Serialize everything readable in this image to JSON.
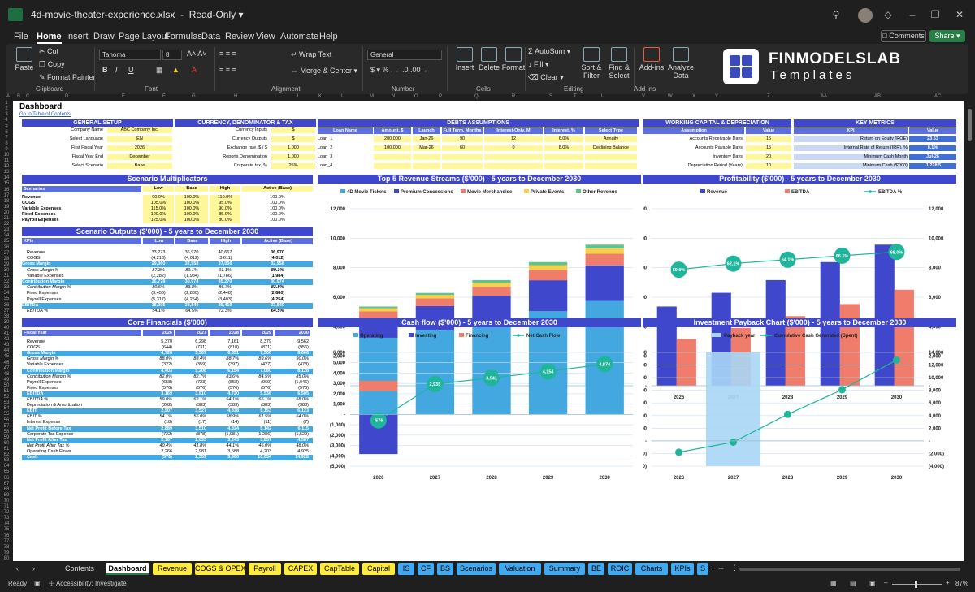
{
  "window": {
    "title": "4d-movie-theater-experience.xlsx",
    "mode": "Read-Only"
  },
  "menu": [
    "File",
    "Home",
    "Insert",
    "Draw",
    "Page Layout",
    "Formulas",
    "Data",
    "Review",
    "View",
    "Automate",
    "Help"
  ],
  "menu_active": "Home",
  "buttons": {
    "comments": "Comments",
    "share": "Share"
  },
  "ribbon": {
    "clipboard": {
      "paste": "Paste",
      "cut": "Cut",
      "copy": "Copy",
      "painter": "Format Painter",
      "label": "Clipboard"
    },
    "font": {
      "name": "Tahoma",
      "size": "8",
      "label": "Font"
    },
    "alignment": {
      "wrap": "Wrap Text",
      "merge": "Merge & Center",
      "label": "Alignment"
    },
    "number": {
      "format": "General",
      "label": "Number"
    },
    "cells": {
      "insert": "Insert",
      "delete": "Delete",
      "format": "Format",
      "label": "Cells"
    },
    "editing": {
      "autosum": "AutoSum",
      "fill": "Fill",
      "clear": "Clear",
      "sort": "Sort & Filter",
      "find": "Find & Select",
      "label": "Editing"
    },
    "addins": {
      "addins": "Add-ins",
      "analyze": "Analyze Data",
      "label": "Add-ins"
    },
    "brand": {
      "line1": "FINMODELSLAB",
      "line2": "Templates"
    }
  },
  "columns": [
    "A",
    "B",
    "C",
    "D",
    "E",
    "F",
    "G",
    "H",
    "I",
    "J",
    "K",
    "L",
    "M",
    "N",
    "O",
    "P",
    "Q",
    "R",
    "S",
    "T",
    "U",
    "V",
    "W",
    "X",
    "Y",
    "Z",
    "AA",
    "AB",
    "AC"
  ],
  "sheet": {
    "title": "Dashboard",
    "link": "Go to Table of Contents",
    "general": {
      "header": "GENERAL SETUP",
      "rows": [
        [
          "Company Name",
          "ABC Company Inc."
        ],
        [
          "Select Language",
          "EN"
        ],
        [
          "First Fiscal Year",
          "2026"
        ],
        [
          "Fiscal Year End",
          "December"
        ],
        [
          "Select Scenario",
          "Base"
        ]
      ]
    },
    "currency": {
      "header": "CURRENCY, DENOMINATOR & TAX",
      "rows": [
        [
          "Currency Inputs",
          "$"
        ],
        [
          "Currency Outputs",
          "$"
        ],
        [
          "Exchange rate, $ / $",
          "1.000"
        ],
        [
          "Reports Denomination",
          "1,000"
        ],
        [
          "Corporate tax, %",
          "25%"
        ]
      ]
    },
    "debts": {
      "header": "DEBTS ASSUMPTIONS",
      "cols": [
        "Loan Name",
        "Amount, $",
        "Launch",
        "Full Term, Months",
        "Interest-Only, M",
        "Interest, %",
        "Select Type"
      ],
      "rows": [
        [
          "Loan_1",
          "200,000",
          "Jan-26",
          "90",
          "12",
          "6.0%",
          "Annuity"
        ],
        [
          "Loan_2",
          "100,000",
          "Mar-26",
          "60",
          "0",
          "8.0%",
          "Declining Balance"
        ],
        [
          "Loan_3",
          "",
          "",
          "",
          "",
          "",
          ""
        ],
        [
          "Loan_4",
          "",
          "",
          "",
          "",
          "",
          ""
        ]
      ]
    },
    "wc": {
      "header": "WORKING CAPITAL & DEPRECIATION",
      "cols": [
        "Assumption",
        "Value"
      ],
      "rows": [
        [
          "Accounts Receivable Days",
          "15"
        ],
        [
          "Accounts Payable Days",
          "15"
        ],
        [
          "Inventory Days",
          "20"
        ],
        [
          "Depreciation Period (Years)",
          "10"
        ]
      ]
    },
    "kpi": {
      "header": "KEY METRICS",
      "cols": [
        "KPI",
        "Value"
      ],
      "rows": [
        [
          "Return on Equity (ROE)",
          "23.53"
        ],
        [
          "Internal Rate of Return (IRR), %",
          "8.1%"
        ],
        [
          "Minimum Cash Month",
          "Jul-26"
        ],
        [
          "Minimum Cash ($'000)",
          "-1,228.5"
        ]
      ]
    },
    "multipliers": {
      "title": "Scenario Multiplicators",
      "cols": [
        "Scenarios",
        "Low",
        "Base",
        "High",
        "Active (Base)"
      ],
      "rows": [
        [
          "Revenue",
          "90.0%",
          "100.0%",
          "110.0%",
          "100.0%"
        ],
        [
          "COGS",
          "105.0%",
          "100.0%",
          "95.0%",
          "100.0%"
        ],
        [
          "Variable Expenses",
          "115.0%",
          "100.0%",
          "90.0%",
          "100.0%"
        ],
        [
          "Fixed Expenses",
          "120.0%",
          "100.0%",
          "85.0%",
          "100.0%"
        ],
        [
          "Payroll Expenses",
          "125.0%",
          "100.0%",
          "80.0%",
          "100.0%"
        ]
      ]
    },
    "outputs": {
      "title": "Scenario Outputs ($'000) - 5 years to December 2030",
      "cols": [
        "KPIs",
        "Low",
        "Base",
        "High",
        "Active (Base)"
      ],
      "rows": [
        [
          "Revenue",
          "33,273",
          "36,970",
          "40,667",
          "36,970",
          ""
        ],
        [
          "COGS",
          "(4,213)",
          "(4,012)",
          "(3,611)",
          "(4,012)",
          ""
        ],
        [
          "Gross Margin",
          "29,060",
          "32,958",
          "37,056",
          "32,958",
          "hl"
        ],
        [
          "Gross Margin %",
          "87.3%",
          "89.1%",
          "91.1%",
          "89.1%",
          "it"
        ],
        [
          "Variable Expenses",
          "(2,282)",
          "(1,984)",
          "(1,786)",
          "(1,984)",
          ""
        ],
        [
          "Contribution Margin",
          "26,778",
          "30,974",
          "35,270",
          "30,974",
          "hl"
        ],
        [
          "Contribution Margin %",
          "80.5%",
          "83.8%",
          "86.7%",
          "83.8%",
          "it"
        ],
        [
          "Fixed Expenses",
          "(3,456)",
          "(2,880)",
          "(2,448)",
          "(2,880)",
          ""
        ],
        [
          "Payroll Expenses",
          "(5,317)",
          "(4,254)",
          "(3,403)",
          "(4,254)",
          ""
        ],
        [
          "EBITDA",
          "18,005",
          "23,840",
          "29,419",
          "23,840",
          "hl"
        ],
        [
          "EBITDA %",
          "54.1%",
          "64.5%",
          "72.3%",
          "64.5%",
          "it"
        ]
      ]
    },
    "core": {
      "title": "Core Financials ($'000)",
      "cols": [
        "Fiscal Year",
        "2026",
        "2027",
        "2028",
        "2029",
        "2030"
      ],
      "rows": [
        [
          "Revenue",
          "5,370",
          "6,298",
          "7,161",
          "8,379",
          "9,562",
          ""
        ],
        [
          "COGS",
          "(644)",
          "(731)",
          "(810)",
          "(871)",
          "(956)",
          ""
        ],
        [
          "Gross Margin",
          "4,726",
          "5,567",
          "6,351",
          "7,508",
          "8,606",
          "hl"
        ],
        [
          "Gross Margin %",
          "88.0%",
          "88.4%",
          "88.7%",
          "89.6%",
          "90.0%",
          "it"
        ],
        [
          "Variable Expenses",
          "(322)",
          "(359)",
          "(397)",
          "(427)",
          "(478)",
          ""
        ],
        [
          "Contribution Margin",
          "4,403",
          "5,208",
          "6,154",
          "7,080",
          "8,128",
          "hl"
        ],
        [
          "Contribution Margin %",
          "82.0%",
          "82.7%",
          "83.6%",
          "84.5%",
          "85.0%",
          "it"
        ],
        [
          "Payroll Expenses",
          "(658)",
          "(723)",
          "(858)",
          "(969)",
          "(1,046)",
          ""
        ],
        [
          "Fixed Expenses",
          "(576)",
          "(576)",
          "(576)",
          "(576)",
          "(576)",
          ""
        ],
        [
          "EBITDA",
          "3,169",
          "3,910",
          "4,720",
          "5,536",
          "6,505",
          "hl"
        ],
        [
          "EBITDA %",
          "59.0%",
          "62.1%",
          "64.1%",
          "66.1%",
          "68.0%",
          "it"
        ],
        [
          "Depreciation & Amortization",
          "(262)",
          "(383)",
          "(383)",
          "(383)",
          "(383)",
          ""
        ],
        [
          "EBIT",
          "2,907",
          "3,527",
          "4,338",
          "5,153",
          "6,123",
          "hl"
        ],
        [
          "EBIT %",
          "54.1%",
          "56.0%",
          "58.9%",
          "61.5%",
          "64.0%",
          "it"
        ],
        [
          "Interest Expense",
          "(18)",
          "(17)",
          "(14)",
          "(11)",
          "(7)",
          ""
        ],
        [
          "Net Profit Before Tax",
          "2,889",
          "3,510",
          "4,324",
          "5,142",
          "6,115",
          "hl"
        ],
        [
          "Corporate Tax Expense",
          "(722)",
          "(878)",
          "(1,081)",
          "(1,286)",
          "(1,529)",
          ""
        ],
        [
          "Net Profit After Tax",
          "2,167",
          "2,633",
          "3,243",
          "3,857",
          "4,587",
          "hl"
        ],
        [
          "Net Profit After Tax %",
          "40.4%",
          "41.8%",
          "44.1%",
          "46.0%",
          "48.0%",
          "it"
        ],
        [
          "Operating Cash Flows",
          "2,266",
          "2,981",
          "3,588",
          "4,203",
          "4,925",
          ""
        ],
        [
          "Cash",
          "(576)",
          "2,359",
          "5,900",
          "10,054",
          "14,928",
          "hl"
        ]
      ]
    },
    "row_numbers": [
      "1",
      "2",
      "3",
      "4",
      "5",
      "6",
      "7",
      "8",
      "9",
      "10",
      "11",
      "12",
      "13",
      "14",
      "15",
      "16",
      "17",
      "18",
      "19",
      "20",
      "21",
      "22",
      "23",
      "24",
      "25",
      "26",
      "27",
      "28",
      "29",
      "30",
      "31",
      "32",
      "33",
      "34",
      "35",
      "36",
      "37",
      "38",
      "39",
      "40",
      "41",
      "42",
      "43",
      "44",
      "45",
      "46",
      "47",
      "48",
      "49",
      "50",
      "51",
      "52",
      "53",
      "54",
      "55",
      "56",
      "57",
      "58",
      "59",
      "60",
      "61",
      "62",
      "63",
      "64",
      "65",
      "66",
      "67",
      "68",
      "69",
      "70",
      "71",
      "72",
      "73",
      "74",
      "75",
      "76",
      "77",
      "78",
      "79",
      "80"
    ]
  },
  "chart_data": [
    {
      "type": "bar",
      "title": "Top 5 Revenue Streams ($'000) - 5 years to December 2030",
      "stacked": true,
      "categories": [
        "2026",
        "2027",
        "2028",
        "2029",
        "2030"
      ],
      "ylim": [
        0,
        12000
      ],
      "yticks": [
        "-",
        "2,000",
        "4,000",
        "6,000",
        "8,000",
        "10,000",
        "12,000"
      ],
      "legend": "top",
      "series": [
        {
          "name": "4D Movie Tickets",
          "color": "#43a8e0",
          "values": [
            3250,
            3800,
            4300,
            5050,
            5750
          ]
        },
        {
          "name": "Premium Concessions",
          "color": "#3f48cc",
          "values": [
            1350,
            1600,
            1800,
            2100,
            2400
          ]
        },
        {
          "name": "Movie Merchandise",
          "color": "#f07c6c",
          "values": [
            450,
            520,
            600,
            700,
            800
          ]
        },
        {
          "name": "Private Events",
          "color": "#f7d04a",
          "values": [
            200,
            230,
            270,
            310,
            350
          ]
        },
        {
          "name": "Other Revenue",
          "color": "#5fc38a",
          "values": [
            120,
            140,
            190,
            220,
            260
          ]
        }
      ]
    },
    {
      "type": "bar+line",
      "title": "Profitability ($'000) - 5 years to December 2030",
      "categories": [
        "2026",
        "2027",
        "2028",
        "2029",
        "2030"
      ],
      "ylim": [
        0,
        12000
      ],
      "yticks": [
        "-",
        "2,000",
        "4,000",
        "6,000",
        "8,000",
        "10,000",
        "12,000"
      ],
      "y2lim": [
        0,
        0.9
      ],
      "legend": "top",
      "series": [
        {
          "name": "Revenue",
          "color": "#3f48cc",
          "values": [
            5370,
            6298,
            7161,
            8379,
            9562
          ]
        },
        {
          "name": "EBITDA",
          "color": "#f07c6c",
          "values": [
            3169,
            3910,
            4720,
            5536,
            6505
          ]
        },
        {
          "name": "EBITDA %",
          "color": "#1fb59a",
          "type": "line",
          "values": [
            0.59,
            0.621,
            0.641,
            0.661,
            0.68
          ],
          "labels": [
            "59.0%",
            "62.1%",
            "64.1%",
            "66.1%",
            "68.0%"
          ]
        }
      ]
    },
    {
      "type": "bar+line",
      "title": "Cash flow ($'000) - 5 years to December 2030",
      "stacked": true,
      "categories": [
        "2026",
        "2027",
        "2028",
        "2029",
        "2030"
      ],
      "ylim": [
        -5000,
        6000
      ],
      "yticks": [
        "(5,000)",
        "(4,000)",
        "(3,000)",
        "(2,000)",
        "(1,000)",
        "-",
        "1,000",
        "2,000",
        "3,000",
        "4,000",
        "5,000",
        "6,000"
      ],
      "legend": "top",
      "series": [
        {
          "name": "Operating",
          "color": "#43a8e0",
          "values": [
            2266,
            2981,
            3588,
            4203,
            4925
          ]
        },
        {
          "name": "Investing",
          "color": "#3f48cc",
          "values": [
            -3830,
            0,
            0,
            0,
            0
          ]
        },
        {
          "name": "Financing",
          "color": "#f07c6c",
          "values": [
            988,
            0,
            0,
            0,
            0
          ]
        },
        {
          "name": "Net Cash Flow",
          "color": "#1fb59a",
          "type": "line",
          "values": [
            -576,
            2935,
            3541,
            4154,
            4874
          ],
          "labels": [
            "-576",
            "2,935",
            "3,541",
            "4,154",
            "4,874"
          ]
        }
      ]
    },
    {
      "type": "bar+line",
      "title": "Investment Payback Chart ($'000) - 5 years to December 2030",
      "categories": [
        "2026",
        "2027",
        "2028",
        "2029",
        "2030"
      ],
      "ylim": [
        -4000,
        14000
      ],
      "yticks": [
        "(4,000)",
        "(2,000)",
        "-",
        "2,000",
        "4,000",
        "6,000",
        "8,000",
        "10,000",
        "12,000",
        "14,000"
      ],
      "legend": "top",
      "series": [
        {
          "name": "Payback year",
          "color": "#a9d6f5",
          "values": [
            0,
            1,
            0,
            0,
            0
          ]
        },
        {
          "name": "Cumulative Cash Generated (Spent)",
          "color": "#1fb59a",
          "type": "line",
          "values": [
            -1800,
            -200,
            4200,
            8100,
            12800
          ]
        }
      ]
    }
  ],
  "tabs": [
    {
      "label": "Contents",
      "bg": "#1f1f1f",
      "fg": "#ddd"
    },
    {
      "label": "Dashboard",
      "bg": "#ffffff",
      "fg": "#000",
      "active": true
    },
    {
      "label": "Revenue",
      "bg": "#ffeb3b"
    },
    {
      "label": "COGS & OPEX",
      "bg": "#ffeb3b"
    },
    {
      "label": "Payroll",
      "bg": "#ffeb3b"
    },
    {
      "label": "CAPEX",
      "bg": "#ffeb3b"
    },
    {
      "label": "CapTable",
      "bg": "#ffeb3b"
    },
    {
      "label": "Capital",
      "bg": "#ffeb3b"
    },
    {
      "label": "IS",
      "bg": "#40a9f0"
    },
    {
      "label": "CF",
      "bg": "#40a9f0"
    },
    {
      "label": "BS",
      "bg": "#40a9f0"
    },
    {
      "label": "Scenarios",
      "bg": "#40a9f0"
    },
    {
      "label": "Valuation",
      "bg": "#40a9f0"
    },
    {
      "label": "Summary",
      "bg": "#40a9f0"
    },
    {
      "label": "BE",
      "bg": "#40a9f0"
    },
    {
      "label": "ROIC",
      "bg": "#40a9f0"
    },
    {
      "label": "Charts",
      "bg": "#40a9f0"
    },
    {
      "label": "KPIs",
      "bg": "#40a9f0"
    },
    {
      "label": "S",
      "bg": "#40a9f0"
    }
  ],
  "status": {
    "ready": "Ready",
    "accessibility": "Accessibility: Investigate",
    "zoom": "87%"
  }
}
